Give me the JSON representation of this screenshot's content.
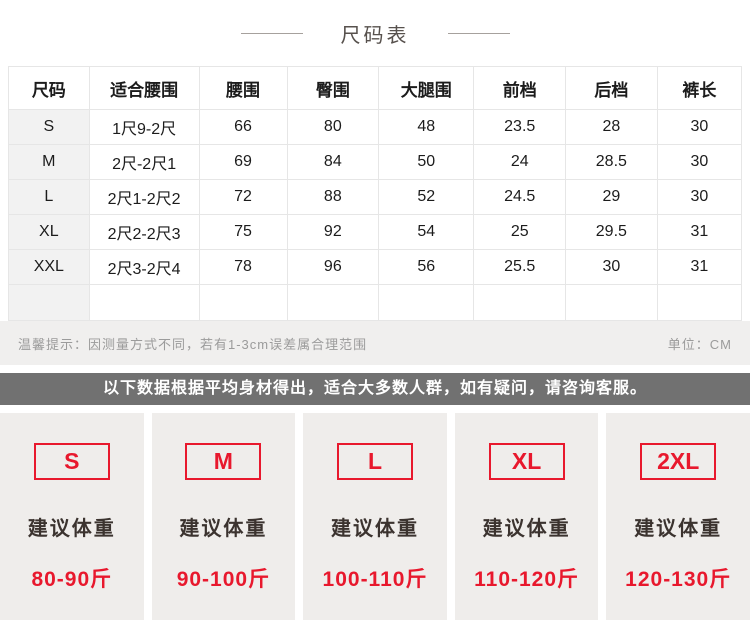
{
  "title": "尺码表",
  "size_table": {
    "columns": [
      "尺码",
      "适合腰围",
      "腰围",
      "臀围",
      "大腿围",
      "前档",
      "后档",
      "裤长"
    ],
    "rows": [
      [
        "S",
        "1尺9-2尺",
        "66",
        "80",
        "48",
        "23.5",
        "28",
        "30"
      ],
      [
        "M",
        "2尺-2尺1",
        "69",
        "84",
        "50",
        "24",
        "28.5",
        "30"
      ],
      [
        "L",
        "2尺1-2尺2",
        "72",
        "88",
        "52",
        "24.5",
        "29",
        "30"
      ],
      [
        "XL",
        "2尺2-2尺3",
        "75",
        "92",
        "54",
        "25",
        "29.5",
        "31"
      ],
      [
        "XXL",
        "2尺3-2尺4",
        "78",
        "96",
        "56",
        "25.5",
        "30",
        "31"
      ]
    ],
    "note": "温馨提示：因测量方式不同，若有1-3cm误差属合理范围",
    "unit": "单位：CM"
  },
  "banner": "以下数据根据平均身材得出，适合大多数人群，如有疑问，请咨询客服。",
  "weight_cards": {
    "label": "建议体重",
    "items": [
      {
        "size": "S",
        "weight": "80-90斤"
      },
      {
        "size": "M",
        "weight": "90-100斤"
      },
      {
        "size": "L",
        "weight": "100-110斤"
      },
      {
        "size": "XL",
        "weight": "110-120斤"
      },
      {
        "size": "2XL",
        "weight": "120-130斤"
      }
    ]
  },
  "colors": {
    "accent_red": "#e8182d",
    "banner_gray": "#717171",
    "note_bg": "#f0efee",
    "card_bg": "#efedeb"
  }
}
